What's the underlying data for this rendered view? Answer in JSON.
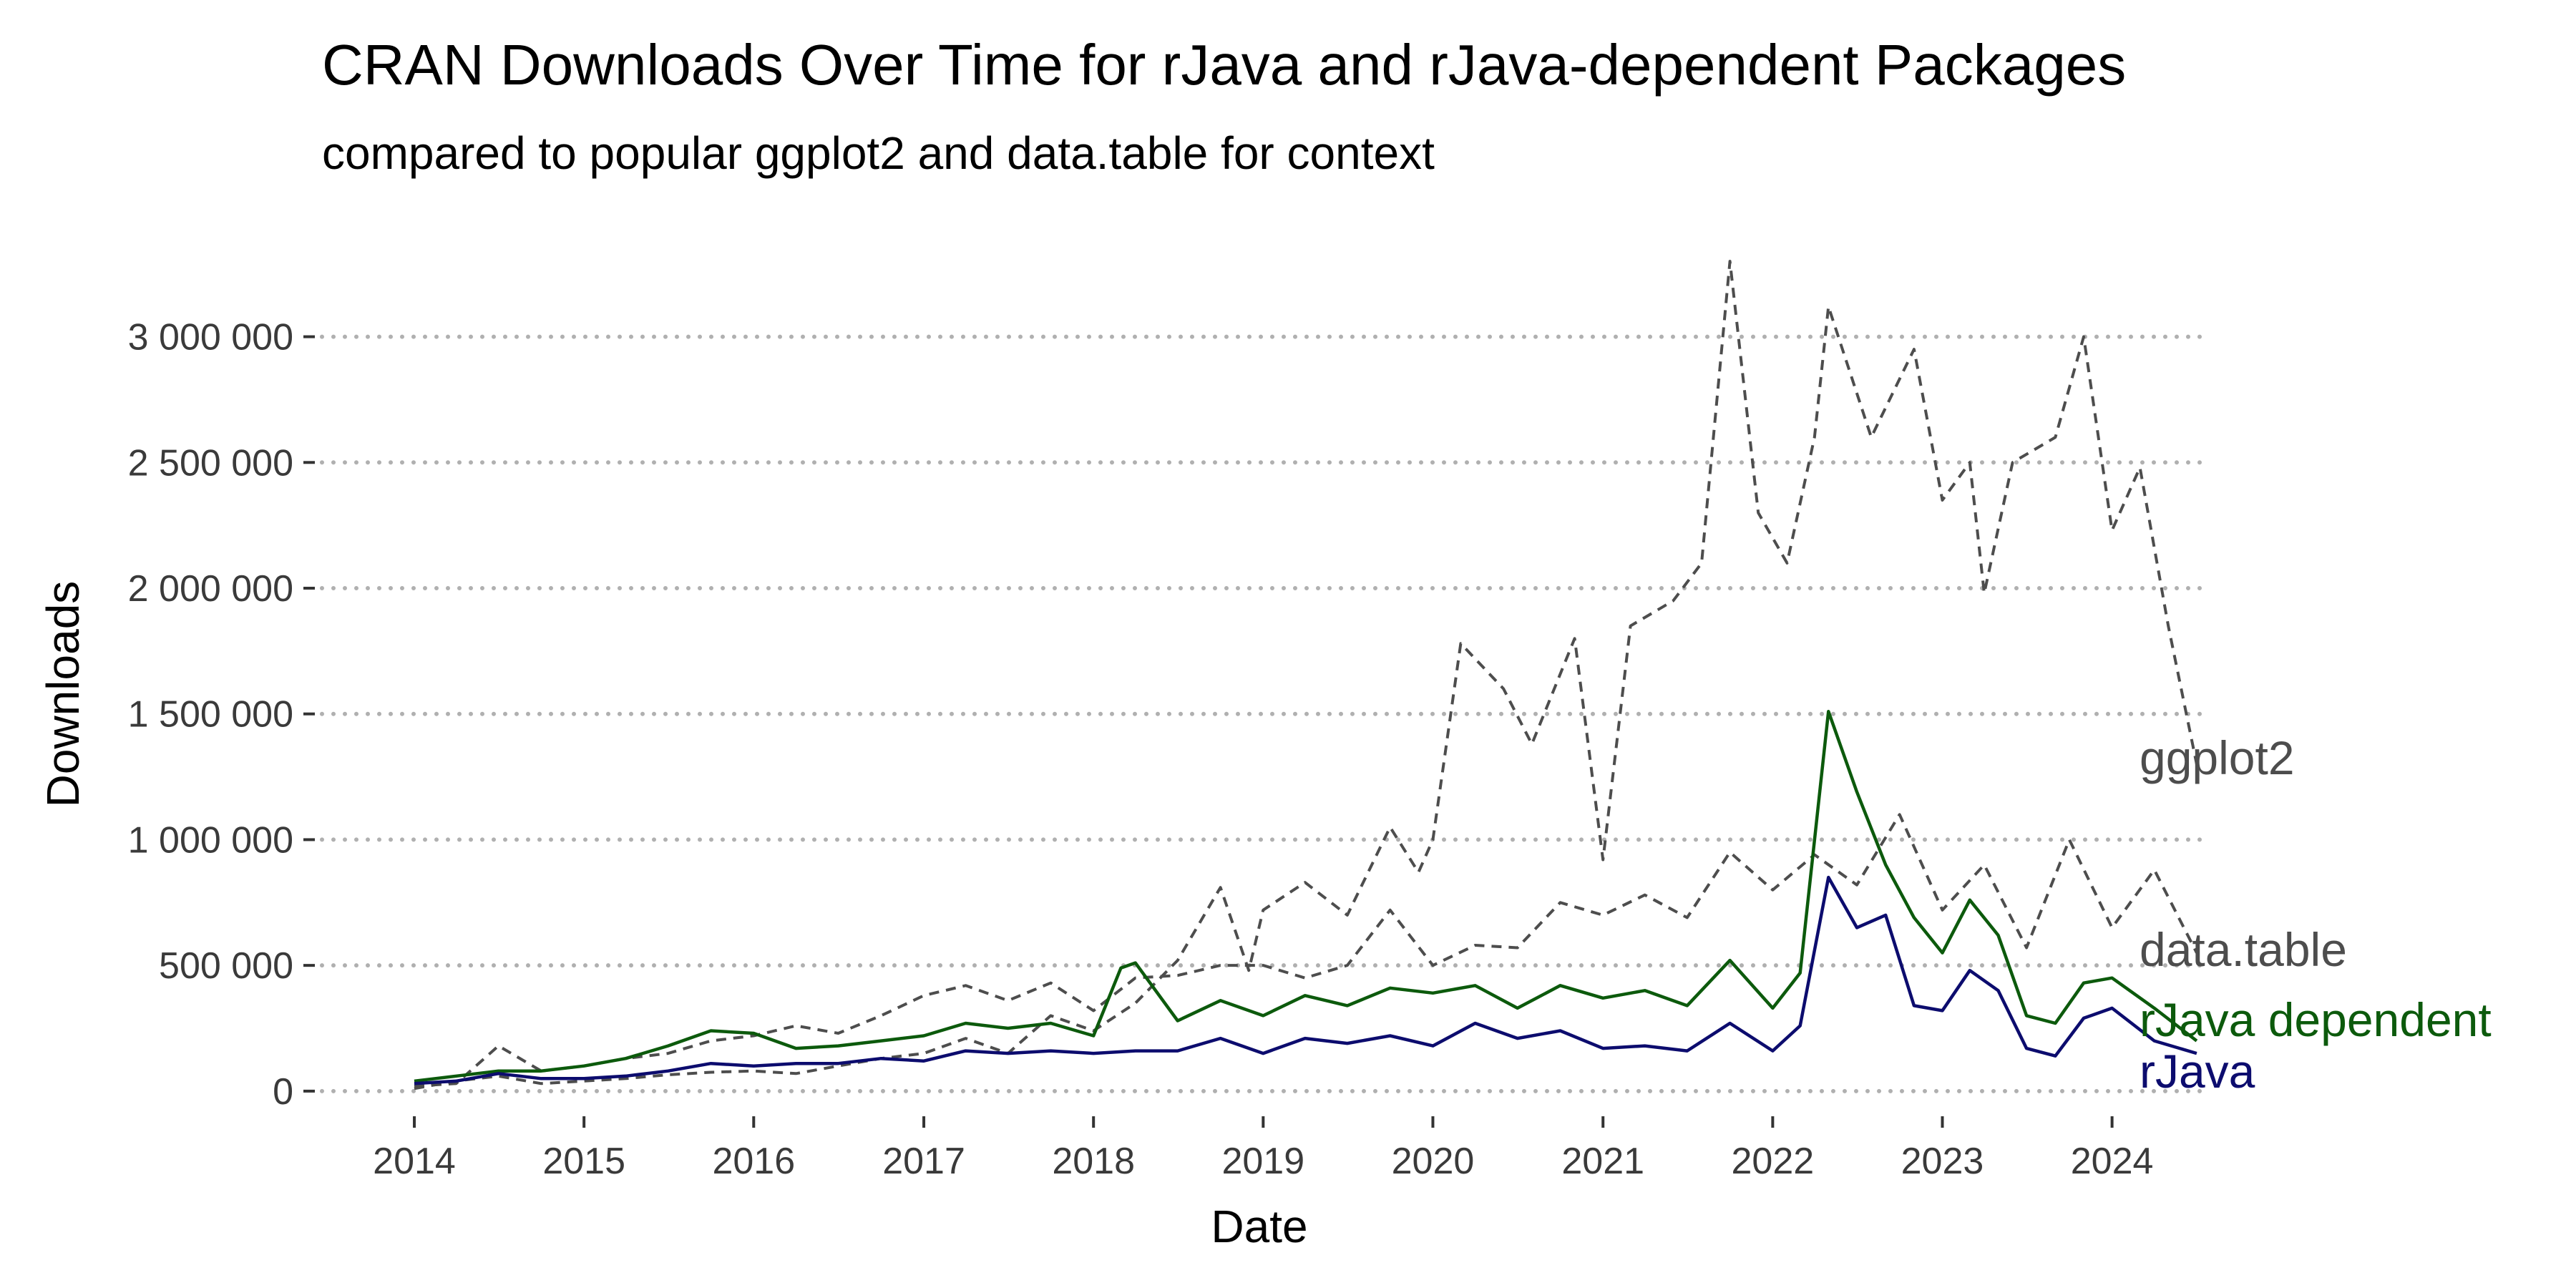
{
  "chart_data": {
    "type": "line",
    "title": "CRAN Downloads Over Time for rJava and rJava-dependent Packages",
    "subtitle": "compared to popular ggplot2 and data.table for context",
    "xlabel": "Date",
    "ylabel": "Downloads",
    "xlim": [
      "2013-06-01",
      "2024-08-01"
    ],
    "ylim": [
      -100000,
      3400000
    ],
    "x_ticks": [
      "2014-01-01",
      "2015-01-01",
      "2016-01-01",
      "2017-01-01",
      "2018-01-01",
      "2019-01-01",
      "2020-01-01",
      "2021-01-01",
      "2022-01-01",
      "2023-01-01",
      "2024-01-01"
    ],
    "x_tick_labels": [
      "2014",
      "2015",
      "2016",
      "2017",
      "2018",
      "2019",
      "2020",
      "2021",
      "2022",
      "2023",
      "2024"
    ],
    "y_ticks": [
      0,
      500000,
      1000000,
      1500000,
      2000000,
      2500000,
      3000000
    ],
    "y_tick_labels": [
      "0",
      "500 000",
      "1 000 000",
      "1 500 000",
      "2 000 000",
      "2 500 000",
      "3 000 000"
    ],
    "grid": "horizontal dotted",
    "legend": "direct labels at line ends",
    "series": [
      {
        "name": "ggplot2",
        "color": "#4d4d4d",
        "linestyle": "dashed",
        "points": [
          [
            "2014-01-01",
            10000
          ],
          [
            "2014-04-01",
            40000
          ],
          [
            "2014-07-01",
            60000
          ],
          [
            "2014-10-01",
            30000
          ],
          [
            "2015-01-01",
            40000
          ],
          [
            "2015-04-01",
            50000
          ],
          [
            "2015-07-01",
            65000
          ],
          [
            "2015-10-01",
            75000
          ],
          [
            "2016-01-01",
            80000
          ],
          [
            "2016-04-01",
            70000
          ],
          [
            "2016-07-01",
            100000
          ],
          [
            "2016-10-01",
            130000
          ],
          [
            "2017-01-01",
            150000
          ],
          [
            "2017-04-01",
            210000
          ],
          [
            "2017-07-01",
            150000
          ],
          [
            "2017-10-01",
            300000
          ],
          [
            "2018-01-01",
            240000
          ],
          [
            "2018-04-01",
            350000
          ],
          [
            "2018-07-01",
            520000
          ],
          [
            "2018-10-01",
            810000
          ],
          [
            "2018-12-01",
            480000
          ],
          [
            "2019-01-01",
            720000
          ],
          [
            "2019-04-01",
            830000
          ],
          [
            "2019-07-01",
            700000
          ],
          [
            "2019-10-01",
            1050000
          ],
          [
            "2019-12-01",
            870000
          ],
          [
            "2020-01-01",
            1000000
          ],
          [
            "2020-03-01",
            1780000
          ],
          [
            "2020-06-01",
            1600000
          ],
          [
            "2020-08-01",
            1380000
          ],
          [
            "2020-11-01",
            1800000
          ],
          [
            "2021-01-01",
            920000
          ],
          [
            "2021-03-01",
            1850000
          ],
          [
            "2021-06-01",
            1950000
          ],
          [
            "2021-08-01",
            2100000
          ],
          [
            "2021-10-01",
            3300000
          ],
          [
            "2021-12-01",
            2300000
          ],
          [
            "2022-02-01",
            2100000
          ],
          [
            "2022-04-01",
            2600000
          ],
          [
            "2022-05-01",
            3120000
          ],
          [
            "2022-08-01",
            2600000
          ],
          [
            "2022-11-01",
            2950000
          ],
          [
            "2023-01-01",
            2350000
          ],
          [
            "2023-03-01",
            2500000
          ],
          [
            "2023-04-01",
            1980000
          ],
          [
            "2023-06-01",
            2500000
          ],
          [
            "2023-09-01",
            2600000
          ],
          [
            "2023-11-01",
            3000000
          ],
          [
            "2024-01-01",
            2230000
          ],
          [
            "2024-03-01",
            2480000
          ],
          [
            "2024-05-01",
            1850000
          ],
          [
            "2024-07-01",
            1300000
          ]
        ]
      },
      {
        "name": "data.table",
        "color": "#4d4d4d",
        "linestyle": "dashed",
        "points": [
          [
            "2014-01-01",
            20000
          ],
          [
            "2014-04-01",
            30000
          ],
          [
            "2014-07-01",
            180000
          ],
          [
            "2014-10-01",
            80000
          ],
          [
            "2015-01-01",
            100000
          ],
          [
            "2015-04-01",
            130000
          ],
          [
            "2015-07-01",
            150000
          ],
          [
            "2015-10-01",
            200000
          ],
          [
            "2016-01-01",
            220000
          ],
          [
            "2016-04-01",
            260000
          ],
          [
            "2016-07-01",
            230000
          ],
          [
            "2016-10-01",
            300000
          ],
          [
            "2017-01-01",
            380000
          ],
          [
            "2017-04-01",
            420000
          ],
          [
            "2017-07-01",
            360000
          ],
          [
            "2017-10-01",
            430000
          ],
          [
            "2018-01-01",
            320000
          ],
          [
            "2018-04-01",
            450000
          ],
          [
            "2018-07-01",
            460000
          ],
          [
            "2018-10-01",
            500000
          ],
          [
            "2019-01-01",
            500000
          ],
          [
            "2019-04-01",
            450000
          ],
          [
            "2019-07-01",
            500000
          ],
          [
            "2019-10-01",
            720000
          ],
          [
            "2020-01-01",
            500000
          ],
          [
            "2020-04-01",
            580000
          ],
          [
            "2020-07-01",
            570000
          ],
          [
            "2020-10-01",
            750000
          ],
          [
            "2021-01-01",
            700000
          ],
          [
            "2021-04-01",
            780000
          ],
          [
            "2021-07-01",
            690000
          ],
          [
            "2021-10-01",
            950000
          ],
          [
            "2022-01-01",
            800000
          ],
          [
            "2022-04-01",
            940000
          ],
          [
            "2022-07-01",
            820000
          ],
          [
            "2022-10-01",
            1100000
          ],
          [
            "2023-01-01",
            720000
          ],
          [
            "2023-04-01",
            900000
          ],
          [
            "2023-07-01",
            570000
          ],
          [
            "2023-10-01",
            1000000
          ],
          [
            "2024-01-01",
            650000
          ],
          [
            "2024-04-01",
            880000
          ],
          [
            "2024-07-01",
            550000
          ]
        ]
      },
      {
        "name": "rJava dependent",
        "color": "#0c5a0c",
        "linestyle": "solid",
        "points": [
          [
            "2014-01-01",
            40000
          ],
          [
            "2014-04-01",
            60000
          ],
          [
            "2014-07-01",
            80000
          ],
          [
            "2014-10-01",
            80000
          ],
          [
            "2015-01-01",
            100000
          ],
          [
            "2015-04-01",
            130000
          ],
          [
            "2015-07-01",
            180000
          ],
          [
            "2015-10-01",
            240000
          ],
          [
            "2016-01-01",
            230000
          ],
          [
            "2016-04-01",
            170000
          ],
          [
            "2016-07-01",
            180000
          ],
          [
            "2016-10-01",
            200000
          ],
          [
            "2017-01-01",
            220000
          ],
          [
            "2017-04-01",
            270000
          ],
          [
            "2017-07-01",
            250000
          ],
          [
            "2017-10-01",
            270000
          ],
          [
            "2018-01-01",
            220000
          ],
          [
            "2018-03-01",
            490000
          ],
          [
            "2018-04-01",
            510000
          ],
          [
            "2018-07-01",
            280000
          ],
          [
            "2018-10-01",
            360000
          ],
          [
            "2019-01-01",
            300000
          ],
          [
            "2019-04-01",
            380000
          ],
          [
            "2019-07-01",
            340000
          ],
          [
            "2019-10-01",
            410000
          ],
          [
            "2020-01-01",
            390000
          ],
          [
            "2020-04-01",
            420000
          ],
          [
            "2020-07-01",
            330000
          ],
          [
            "2020-10-01",
            420000
          ],
          [
            "2021-01-01",
            370000
          ],
          [
            "2021-04-01",
            400000
          ],
          [
            "2021-07-01",
            340000
          ],
          [
            "2021-10-01",
            520000
          ],
          [
            "2022-01-01",
            330000
          ],
          [
            "2022-03-01",
            470000
          ],
          [
            "2022-05-01",
            1510000
          ],
          [
            "2022-07-01",
            1190000
          ],
          [
            "2022-09-01",
            900000
          ],
          [
            "2022-11-01",
            690000
          ],
          [
            "2023-01-01",
            550000
          ],
          [
            "2023-03-01",
            760000
          ],
          [
            "2023-05-01",
            620000
          ],
          [
            "2023-07-01",
            300000
          ],
          [
            "2023-09-01",
            270000
          ],
          [
            "2023-11-01",
            430000
          ],
          [
            "2024-01-01",
            450000
          ],
          [
            "2024-04-01",
            330000
          ],
          [
            "2024-07-01",
            200000
          ]
        ]
      },
      {
        "name": "rJava",
        "color": "#0c0c6e",
        "linestyle": "solid",
        "points": [
          [
            "2014-01-01",
            30000
          ],
          [
            "2014-04-01",
            40000
          ],
          [
            "2014-07-01",
            70000
          ],
          [
            "2014-10-01",
            50000
          ],
          [
            "2015-01-01",
            50000
          ],
          [
            "2015-04-01",
            60000
          ],
          [
            "2015-07-01",
            80000
          ],
          [
            "2015-10-01",
            110000
          ],
          [
            "2016-01-01",
            100000
          ],
          [
            "2016-04-01",
            110000
          ],
          [
            "2016-07-01",
            110000
          ],
          [
            "2016-10-01",
            130000
          ],
          [
            "2017-01-01",
            120000
          ],
          [
            "2017-04-01",
            160000
          ],
          [
            "2017-07-01",
            150000
          ],
          [
            "2017-10-01",
            160000
          ],
          [
            "2018-01-01",
            150000
          ],
          [
            "2018-04-01",
            160000
          ],
          [
            "2018-07-01",
            160000
          ],
          [
            "2018-10-01",
            210000
          ],
          [
            "2019-01-01",
            150000
          ],
          [
            "2019-04-01",
            210000
          ],
          [
            "2019-07-01",
            190000
          ],
          [
            "2019-10-01",
            220000
          ],
          [
            "2020-01-01",
            180000
          ],
          [
            "2020-04-01",
            270000
          ],
          [
            "2020-07-01",
            210000
          ],
          [
            "2020-10-01",
            240000
          ],
          [
            "2021-01-01",
            170000
          ],
          [
            "2021-04-01",
            180000
          ],
          [
            "2021-07-01",
            160000
          ],
          [
            "2021-10-01",
            270000
          ],
          [
            "2022-01-01",
            160000
          ],
          [
            "2022-03-01",
            260000
          ],
          [
            "2022-05-01",
            850000
          ],
          [
            "2022-07-01",
            650000
          ],
          [
            "2022-09-01",
            700000
          ],
          [
            "2022-11-01",
            340000
          ],
          [
            "2023-01-01",
            320000
          ],
          [
            "2023-03-01",
            480000
          ],
          [
            "2023-05-01",
            400000
          ],
          [
            "2023-07-01",
            170000
          ],
          [
            "2023-09-01",
            140000
          ],
          [
            "2023-11-01",
            290000
          ],
          [
            "2024-01-01",
            330000
          ],
          [
            "2024-04-01",
            200000
          ],
          [
            "2024-07-01",
            150000
          ]
        ]
      }
    ]
  }
}
